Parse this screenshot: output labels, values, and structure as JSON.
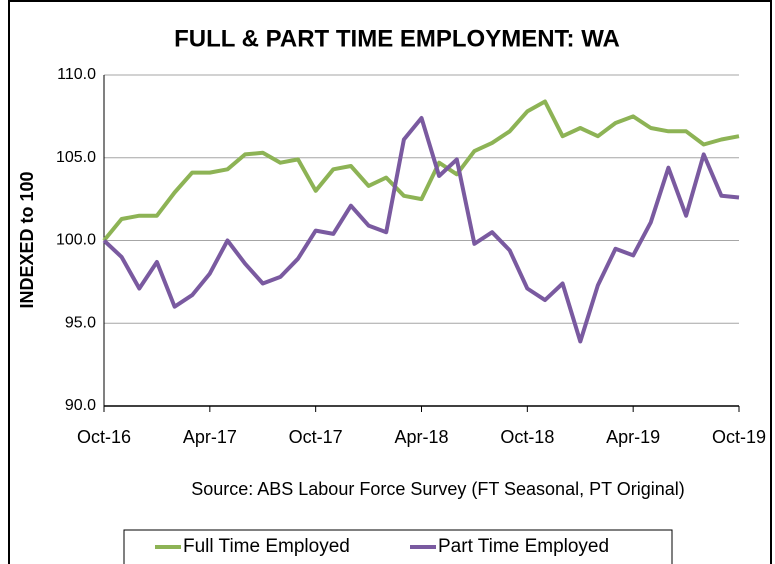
{
  "chart_data": {
    "type": "line",
    "title": "FULL & PART TIME EMPLOYMENT: WA",
    "y_label": "INDEXED to 100",
    "source": "Source: ABS Labour Force Survey (FT Seasonal, PT Original)",
    "categories": [
      "Oct-16",
      null,
      null,
      null,
      null,
      null,
      "Apr-17",
      null,
      null,
      null,
      null,
      null,
      "Oct-17",
      null,
      null,
      null,
      null,
      null,
      "Apr-18",
      null,
      null,
      null,
      null,
      null,
      "Oct-18",
      null,
      null,
      null,
      null,
      null,
      "Apr-19",
      null,
      null,
      null,
      null,
      null,
      "Oct-19"
    ],
    "series": [
      {
        "name": "Full Time Employed",
        "color": "#8db355",
        "values": [
          100.0,
          101.3,
          101.5,
          101.5,
          102.9,
          104.1,
          104.1,
          104.3,
          105.2,
          105.3,
          104.7,
          104.9,
          103.0,
          104.3,
          104.5,
          103.3,
          103.8,
          102.7,
          102.5,
          104.7,
          104.0,
          105.4,
          105.9,
          106.6,
          107.8,
          108.4,
          106.3,
          106.8,
          106.3,
          107.1,
          107.5,
          106.8,
          106.6,
          106.6,
          105.8,
          106.1,
          106.3
        ]
      },
      {
        "name": "Part Time Employed",
        "color": "#7a5aa0",
        "values": [
          100.0,
          99.0,
          97.1,
          98.7,
          96.0,
          96.7,
          98.0,
          100.0,
          98.6,
          97.4,
          97.8,
          98.9,
          100.6,
          100.4,
          102.1,
          100.9,
          100.5,
          106.1,
          107.4,
          103.9,
          104.9,
          99.8,
          100.5,
          99.4,
          97.1,
          96.4,
          97.4,
          93.9,
          97.3,
          99.5,
          99.1,
          101.1,
          104.4,
          101.5,
          105.2,
          102.7,
          102.6
        ]
      }
    ],
    "ylim": [
      90,
      110
    ],
    "yticks": [
      {
        "value": 90,
        "label": "90.0"
      },
      {
        "value": 95,
        "label": "95.0"
      },
      {
        "value": 100,
        "label": "100.0"
      },
      {
        "value": 105,
        "label": "105.0"
      },
      {
        "value": 110,
        "label": "110.0"
      }
    ],
    "grid": true,
    "legend": "bottom"
  }
}
